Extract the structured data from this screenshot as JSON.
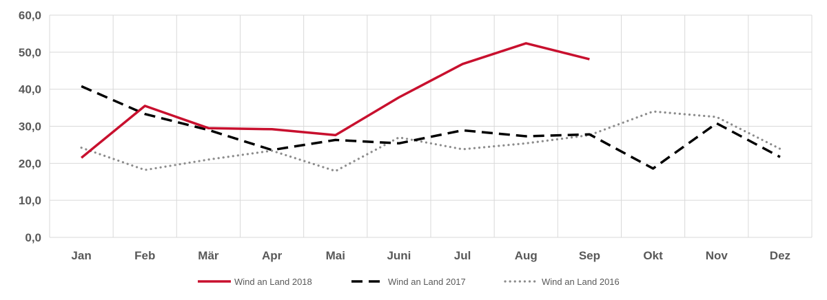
{
  "chart_data": {
    "type": "line",
    "categories": [
      "Jan",
      "Feb",
      "Mär",
      "Apr",
      "Mai",
      "Juni",
      "Jul",
      "Aug",
      "Sep",
      "Okt",
      "Nov",
      "Dez"
    ],
    "ylim": [
      0,
      60
    ],
    "yticks": [
      "0,0",
      "10,0",
      "20,0",
      "30,0",
      "40,0",
      "50,0",
      "60,0"
    ],
    "grid": true,
    "legend_position": "bottom",
    "series": [
      {
        "name": "Wind an Land 2018",
        "color": "#c8102e",
        "style": "solid",
        "values": [
          21.5,
          35.5,
          29.5,
          29.2,
          27.6,
          37.8,
          46.8,
          52.4,
          48.1,
          null,
          null,
          null
        ]
      },
      {
        "name": "Wind an Land 2017",
        "color": "#000000",
        "style": "dashed",
        "values": [
          40.8,
          33.3,
          29.0,
          23.6,
          26.3,
          25.4,
          28.9,
          27.3,
          27.8,
          18.6,
          30.8,
          21.7
        ]
      },
      {
        "name": "Wind an Land 2016",
        "color": "#8c8c8c",
        "style": "dotted",
        "values": [
          24.2,
          18.2,
          21.0,
          23.4,
          17.9,
          27.0,
          23.8,
          25.4,
          27.6,
          34.0,
          32.5,
          23.9
        ]
      }
    ]
  }
}
